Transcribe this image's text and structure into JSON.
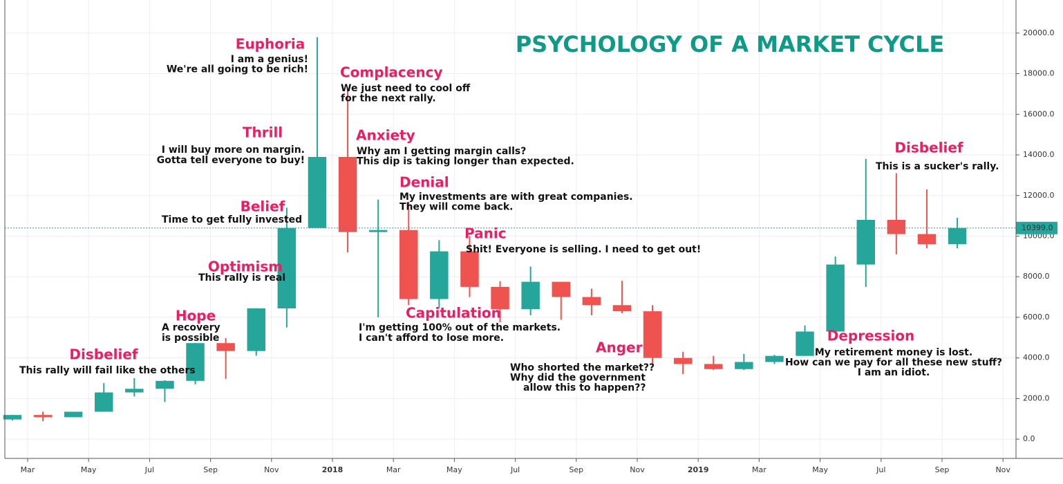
{
  "chart_data": {
    "type": "candlestick",
    "title": "PSYCHOLOGY OF A MARKET CYCLE",
    "categories": [
      null,
      "Mar",
      null,
      "May",
      null,
      "Jul",
      null,
      "Sep",
      null,
      "Nov",
      null,
      "2018",
      null,
      "Mar",
      null,
      "May",
      null,
      "Jul",
      null,
      "Sep",
      null,
      "Nov",
      null,
      "2019",
      null,
      "Mar",
      null,
      "May",
      null,
      "Jul",
      null,
      "Sep",
      null,
      "Nov"
    ],
    "open": [
      970,
      1190,
      1080,
      1350,
      2300,
      2480,
      2870,
      4730,
      4340,
      6440,
      10400,
      13900,
      10200,
      10300,
      6900,
      9250,
      7500,
      6400,
      7750,
      7000,
      6600,
      6300,
      4000,
      3700,
      3450,
      3800,
      4100,
      5300,
      8600,
      10800,
      10100,
      9600,
      null,
      null
    ],
    "high": [
      1190,
      1350,
      1350,
      2760,
      3000,
      2900,
      4740,
      4980,
      6450,
      11400,
      19800,
      17200,
      11800,
      11700,
      9800,
      10000,
      7780,
      8500,
      7750,
      7410,
      7800,
      6600,
      4300,
      4100,
      4200,
      4150,
      5600,
      9000,
      13800,
      13100,
      12300,
      10900,
      null,
      null
    ],
    "low": [
      920,
      890,
      1080,
      1350,
      2100,
      1830,
      2700,
      2970,
      4110,
      5500,
      10400,
      9200,
      6000,
      6600,
      6450,
      7000,
      5750,
      6100,
      5880,
      6100,
      6200,
      3650,
      3200,
      3400,
      3400,
      3700,
      4100,
      5300,
      7500,
      9100,
      9400,
      9400,
      null,
      null
    ],
    "close": [
      1190,
      1080,
      1350,
      2300,
      2480,
      2870,
      4730,
      4340,
      6440,
      10400,
      13900,
      10200,
      10300,
      6900,
      9250,
      7500,
      6400,
      7750,
      7000,
      6600,
      6300,
      4000,
      3700,
      3450,
      3800,
      4100,
      5300,
      8600,
      10800,
      10100,
      9600,
      10399,
      null,
      null
    ],
    "up_color": "#26a69a",
    "down_color": "#ef5350",
    "last_price": {
      "value": 10399,
      "label": "10399.0"
    },
    "ylim": [
      -950,
      21630
    ],
    "yticks": [
      {
        "value": 0,
        "label": "0.0"
      },
      {
        "value": 2000,
        "label": "2000.0"
      },
      {
        "value": 4000,
        "label": "4000.0"
      },
      {
        "value": 6000,
        "label": "6000.0"
      },
      {
        "value": 8000,
        "label": "8000.0"
      },
      {
        "value": 10000,
        "label": "10000.0"
      },
      {
        "value": 12000,
        "label": "12000.0"
      },
      {
        "value": 14000,
        "label": "14000.0"
      },
      {
        "value": 16000,
        "label": "16000.0"
      },
      {
        "value": 18000,
        "label": "18000.0"
      },
      {
        "value": 20000,
        "label": "20000.0"
      }
    ],
    "grid": true,
    "annotations": [
      {
        "label": "Disbelief",
        "text": [
          "This rally will fail like the others"
        ]
      },
      {
        "label": "Hope",
        "text": [
          "A recovery",
          "is possible"
        ]
      },
      {
        "label": "Optimism",
        "text": [
          "This rally is real"
        ]
      },
      {
        "label": "Belief",
        "text": [
          "Time to get fully invested"
        ]
      },
      {
        "label": "Thrill",
        "text": [
          "I will buy more on margin.",
          "Gotta tell everyone to buy!"
        ]
      },
      {
        "label": "Euphoria",
        "text": [
          "I am a genius!",
          "We're all going to be rich!"
        ]
      },
      {
        "label": "Complacency",
        "text": [
          "We just need to cool off",
          "for the next rally."
        ]
      },
      {
        "label": "Anxiety",
        "text": [
          "Why am I getting margin calls?",
          "This dip is taking longer than expected."
        ]
      },
      {
        "label": "Denial",
        "text": [
          "My investments are with great companies.",
          "They will come back."
        ]
      },
      {
        "label": "Panic",
        "text": [
          "Shit! Everyone is selling. I need to get out!"
        ]
      },
      {
        "label": "Capitulation",
        "text": [
          "I'm getting 100% out of the markets.",
          "I can't afford to lose more."
        ]
      },
      {
        "label": "Anger",
        "text": [
          "Who shorted the market??",
          "Why did the government",
          "allow this to happen??"
        ]
      },
      {
        "label": "Depression",
        "text": [
          "My retirement money is lost.",
          "How can we pay for all these new stuff?",
          "I am an idiot."
        ]
      },
      {
        "label": "Disbelief",
        "text": [
          "This is a sucker's rally."
        ]
      }
    ]
  }
}
